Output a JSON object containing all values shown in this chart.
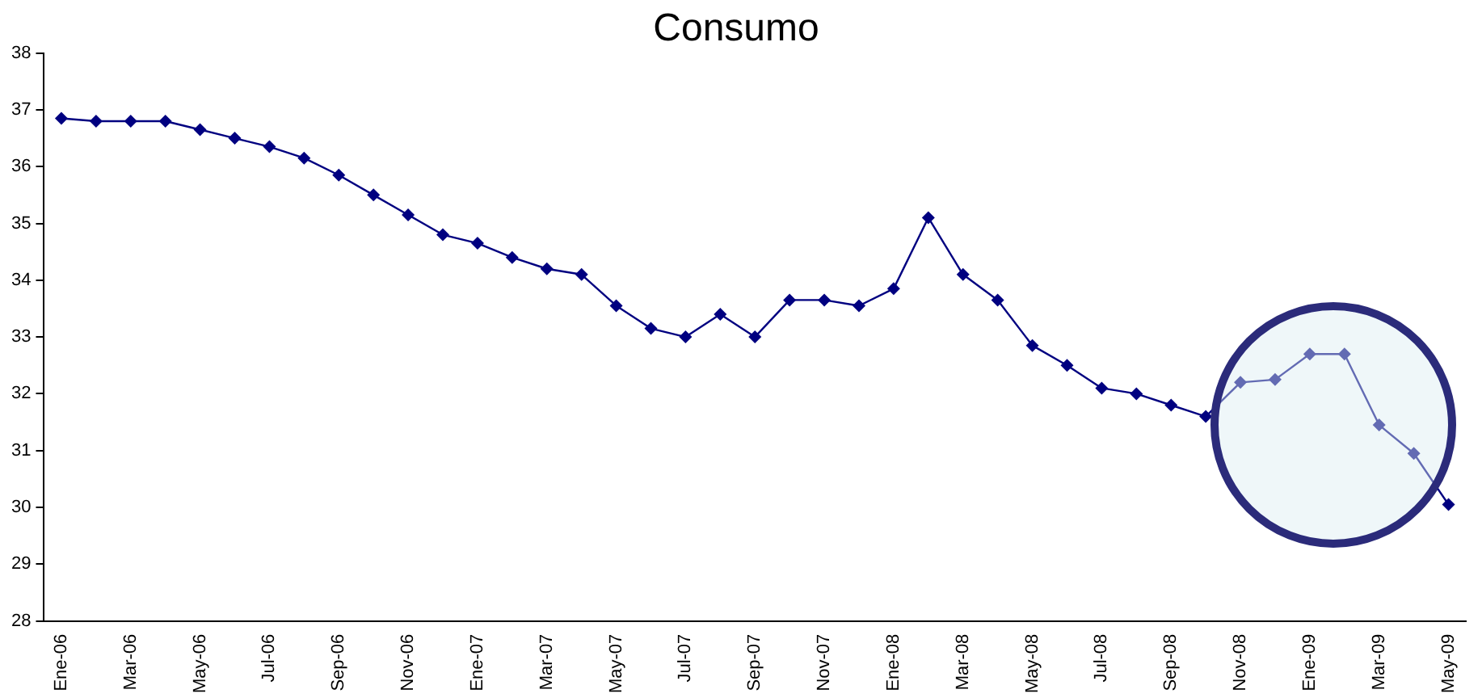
{
  "chart_data": {
    "type": "line",
    "title": "Consumo",
    "categories": [
      "Ene-06",
      null,
      "Mar-06",
      null,
      "May-06",
      null,
      "Jul-06",
      null,
      "Sep-06",
      null,
      "Nov-06",
      null,
      "Ene-07",
      null,
      "Mar-07",
      null,
      "May-07",
      null,
      "Jul-07",
      null,
      "Sep-07",
      null,
      "Nov-07",
      null,
      "Ene-08",
      null,
      "Mar-08",
      null,
      "May-08",
      null,
      "Jul-08",
      null,
      "Sep-08",
      null,
      "Nov-08",
      null,
      "Ene-09",
      null,
      "Mar-09",
      null,
      "May-09"
    ],
    "series": [
      {
        "color": "#000080",
        "values": [
          36.85,
          36.8,
          36.8,
          36.8,
          36.65,
          36.5,
          36.35,
          36.15,
          35.85,
          35.5,
          35.15,
          34.8,
          34.65,
          34.4,
          34.2,
          34.1,
          33.55,
          33.15,
          33.0,
          33.4,
          33.0,
          33.65,
          33.65,
          33.55,
          33.85,
          35.1,
          34.1,
          33.65,
          32.85,
          32.5,
          32.1,
          32.0,
          31.8,
          31.6,
          32.2,
          32.25,
          32.7,
          32.7,
          31.45,
          30.95,
          30.05
        ]
      }
    ],
    "ylim": [
      28,
      38
    ],
    "yticks": [
      28,
      29,
      30,
      31,
      32,
      33,
      34,
      35,
      36,
      37,
      38
    ],
    "grid": false,
    "legend": false,
    "marker": "diamond",
    "line_style": "solid"
  }
}
